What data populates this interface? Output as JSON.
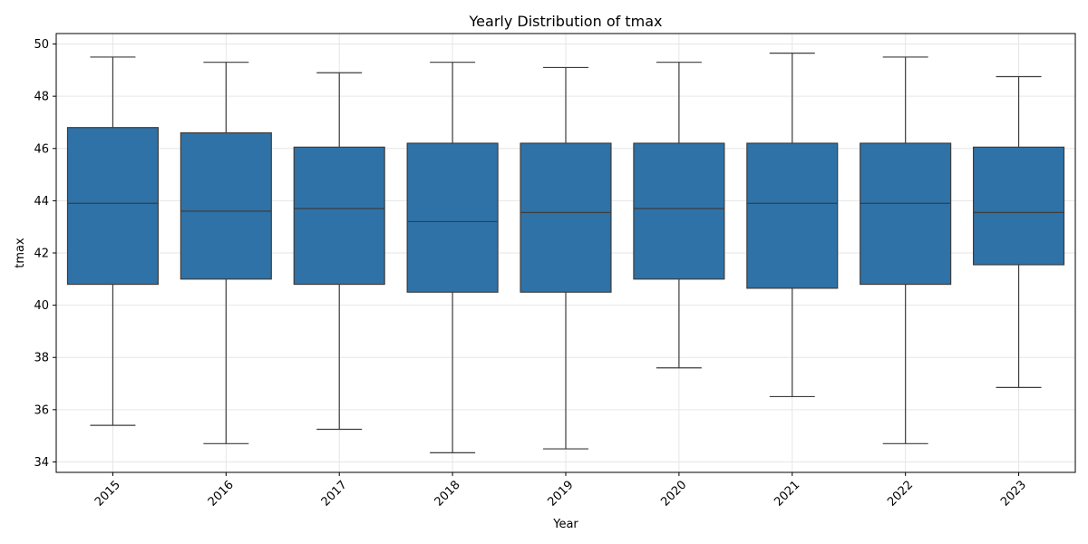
{
  "chart_data": {
    "type": "box",
    "title": "Yearly Distribution of tmax",
    "xlabel": "Year",
    "ylabel": "tmax",
    "ylim": [
      33.6,
      50.4
    ],
    "y_ticks": [
      34,
      36,
      38,
      40,
      42,
      44,
      46,
      48,
      50
    ],
    "grid": true,
    "box_color": "#2e72a8",
    "line_color": "#3d3d3d",
    "categories": [
      "2015",
      "2016",
      "2017",
      "2018",
      "2019",
      "2020",
      "2021",
      "2022",
      "2023"
    ],
    "boxes": [
      {
        "category": "2015",
        "whisker_low": 35.4,
        "q1": 40.8,
        "median": 43.9,
        "q3": 46.8,
        "whisker_high": 49.5
      },
      {
        "category": "2016",
        "whisker_low": 34.7,
        "q1": 41.0,
        "median": 43.6,
        "q3": 46.6,
        "whisker_high": 49.3
      },
      {
        "category": "2017",
        "whisker_low": 35.25,
        "q1": 40.8,
        "median": 43.7,
        "q3": 46.05,
        "whisker_high": 48.9
      },
      {
        "category": "2018",
        "whisker_low": 34.35,
        "q1": 40.5,
        "median": 43.2,
        "q3": 46.2,
        "whisker_high": 49.3
      },
      {
        "category": "2019",
        "whisker_low": 34.5,
        "q1": 40.5,
        "median": 43.55,
        "q3": 46.2,
        "whisker_high": 49.1
      },
      {
        "category": "2020",
        "whisker_low": 37.6,
        "q1": 41.0,
        "median": 43.7,
        "q3": 46.2,
        "whisker_high": 49.3
      },
      {
        "category": "2021",
        "whisker_low": 36.5,
        "q1": 40.65,
        "median": 43.9,
        "q3": 46.2,
        "whisker_high": 49.65
      },
      {
        "category": "2022",
        "whisker_low": 34.7,
        "q1": 40.8,
        "median": 43.9,
        "q3": 46.2,
        "whisker_high": 49.5
      },
      {
        "category": "2023",
        "whisker_low": 36.85,
        "q1": 41.55,
        "median": 43.55,
        "q3": 46.05,
        "whisker_high": 48.75
      }
    ]
  }
}
